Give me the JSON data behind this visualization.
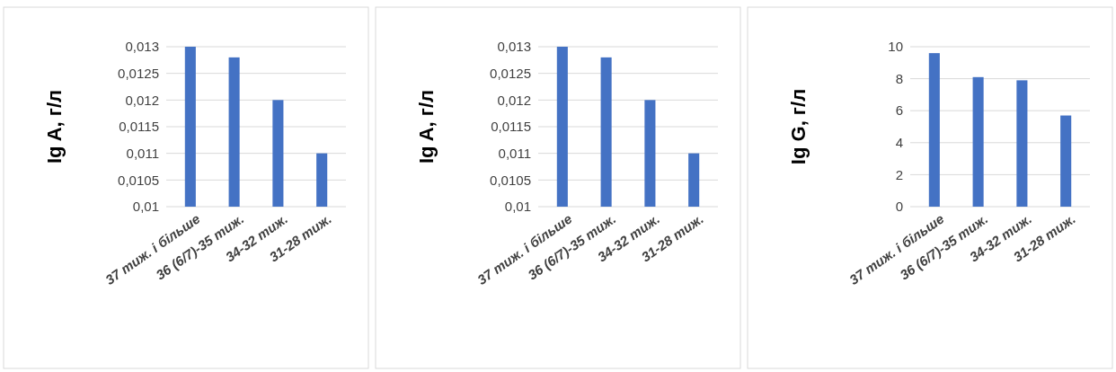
{
  "chart_data": [
    {
      "type": "bar",
      "ylabel": "Ig A, г/л",
      "categories": [
        "37 тиж. і більше",
        "36 (6/7)-35 тиж.",
        "34-32 тиж.",
        "31-28 тиж."
      ],
      "values": [
        0.013,
        0.0128,
        0.012,
        0.011
      ],
      "color": "#4472c4",
      "ylim": [
        0.01,
        0.013
      ],
      "yticks": [
        {
          "value": 0.01,
          "label": "0,01"
        },
        {
          "value": 0.0105,
          "label": "0,0105"
        },
        {
          "value": 0.011,
          "label": "0,011"
        },
        {
          "value": 0.0115,
          "label": "0,0115"
        },
        {
          "value": 0.012,
          "label": "0,012"
        },
        {
          "value": 0.0125,
          "label": "0,0125"
        },
        {
          "value": 0.013,
          "label": "0,013"
        }
      ],
      "grid": "y"
    },
    {
      "type": "bar",
      "ylabel": "Ig A, г/л",
      "categories": [
        "37 тиж. і більше",
        "36 (6/7)-35 тиж.",
        "34-32 тиж.",
        "31-28 тиж."
      ],
      "values": [
        0.013,
        0.0128,
        0.012,
        0.011
      ],
      "color": "#4472c4",
      "ylim": [
        0.01,
        0.013
      ],
      "yticks": [
        {
          "value": 0.01,
          "label": "0,01"
        },
        {
          "value": 0.0105,
          "label": "0,0105"
        },
        {
          "value": 0.011,
          "label": "0,011"
        },
        {
          "value": 0.0115,
          "label": "0,0115"
        },
        {
          "value": 0.012,
          "label": "0,012"
        },
        {
          "value": 0.0125,
          "label": "0,0125"
        },
        {
          "value": 0.013,
          "label": "0,013"
        }
      ],
      "grid": "y"
    },
    {
      "type": "bar",
      "ylabel": "Ig G, г/л",
      "categories": [
        "37 тиж. і більше",
        "36 (6/7)-35 тиж.",
        "34-32 тиж.",
        "31-28 тиж."
      ],
      "values": [
        9.6,
        8.1,
        7.9,
        5.7
      ],
      "color": "#4472c4",
      "ylim": [
        0,
        10
      ],
      "yticks": [
        0,
        2,
        4,
        6,
        8,
        10
      ],
      "grid": "y"
    }
  ]
}
